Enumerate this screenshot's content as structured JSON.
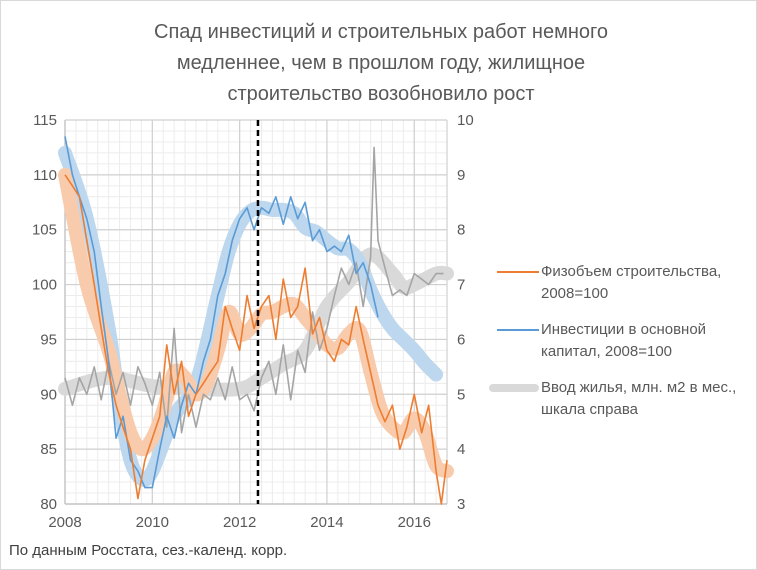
{
  "title": [
    "Спад инвестиций и строительных работ немного",
    "медленнее, чем в прошлом году, жилищное",
    "строительство возобновило рост"
  ],
  "footer": "По данным Росстата, сез.-календ. корр.",
  "legend": [
    {
      "label": "Физобъем строительства, 2008=100",
      "color": "#ED7D31"
    },
    {
      "label": "Инвестиции в основной капитал, 2008=100",
      "color": "#5B9BD5"
    },
    {
      "label": "Ввод жилья, млн. м2 в мес., шкала справа",
      "color": "#D9D9D9"
    }
  ],
  "chart_data": {
    "type": "line",
    "title": "Спад инвестиций и строительных работ немного медленнее, чем в прошлом году, жилищное строительство возобновило рост",
    "xlim": [
      2008,
      2016.75
    ],
    "x_ticks": [
      "2008",
      "2010",
      "2012",
      "2014",
      "2016"
    ],
    "x_tick_values": [
      2008,
      2010,
      2012,
      2014,
      2016
    ],
    "ylim_left": [
      80,
      115
    ],
    "y_ticks_left": [
      "80",
      "85",
      "90",
      "95",
      "100",
      "105",
      "110",
      "115"
    ],
    "ylim_right": [
      3,
      10
    ],
    "y_ticks_right": [
      "3",
      "4",
      "5",
      "6",
      "7",
      "8",
      "9",
      "10"
    ],
    "grid": true,
    "legend_position": "right",
    "marker_line_x": 2012.42,
    "series": [
      {
        "name": "Физобъем строительства, 2008=100",
        "axis": "left",
        "color": "#ED7D31",
        "smooth_color": "#F8CBAD",
        "raw": [
          [
            2008,
            110
          ],
          [
            2008.17,
            109
          ],
          [
            2008.33,
            108
          ],
          [
            2008.5,
            104
          ],
          [
            2008.67,
            100
          ],
          [
            2008.83,
            96
          ],
          [
            2009,
            92
          ],
          [
            2009.17,
            89
          ],
          [
            2009.33,
            87
          ],
          [
            2009.5,
            85
          ],
          [
            2009.67,
            80.5
          ],
          [
            2009.83,
            84
          ],
          [
            2010,
            86
          ],
          [
            2010.17,
            88
          ],
          [
            2010.33,
            94.5
          ],
          [
            2010.5,
            90
          ],
          [
            2010.67,
            93
          ],
          [
            2010.83,
            88
          ],
          [
            2011,
            90
          ],
          [
            2011.17,
            91
          ],
          [
            2011.33,
            92
          ],
          [
            2011.5,
            93
          ],
          [
            2011.67,
            98
          ],
          [
            2011.83,
            96
          ],
          [
            2012,
            94
          ],
          [
            2012.17,
            99
          ],
          [
            2012.33,
            96
          ],
          [
            2012.5,
            98
          ],
          [
            2012.67,
            99
          ],
          [
            2012.83,
            95
          ],
          [
            2013,
            100.5
          ],
          [
            2013.17,
            97
          ],
          [
            2013.33,
            98
          ],
          [
            2013.5,
            101.5
          ],
          [
            2013.67,
            95.5
          ],
          [
            2013.83,
            97
          ],
          [
            2014,
            94
          ],
          [
            2014.17,
            93
          ],
          [
            2014.33,
            95
          ],
          [
            2014.5,
            94.5
          ],
          [
            2014.67,
            98
          ],
          [
            2014.83,
            95
          ],
          [
            2015,
            92
          ],
          [
            2015.17,
            89
          ],
          [
            2015.33,
            87.5
          ],
          [
            2015.5,
            89
          ],
          [
            2015.67,
            85
          ],
          [
            2015.83,
            87
          ],
          [
            2016,
            90
          ],
          [
            2016.17,
            86.5
          ],
          [
            2016.33,
            89
          ],
          [
            2016.5,
            83
          ],
          [
            2016.62,
            80
          ],
          [
            2016.75,
            84
          ]
        ],
        "smooth": [
          [
            2008,
            110
          ],
          [
            2008.5,
            100
          ],
          [
            2009,
            94
          ],
          [
            2009.25,
            90
          ],
          [
            2009.5,
            86.5
          ],
          [
            2009.75,
            85
          ],
          [
            2010,
            86
          ],
          [
            2010.25,
            88.5
          ],
          [
            2010.5,
            92
          ],
          [
            2010.75,
            91.5
          ],
          [
            2011,
            90
          ],
          [
            2011.25,
            91
          ],
          [
            2011.5,
            94
          ],
          [
            2011.75,
            97.5
          ],
          [
            2012,
            95.5
          ],
          [
            2012.25,
            96
          ],
          [
            2012.5,
            97.3
          ],
          [
            2012.75,
            97.5
          ],
          [
            2013,
            98
          ],
          [
            2013.25,
            98.2
          ],
          [
            2013.5,
            97
          ],
          [
            2013.75,
            95.8
          ],
          [
            2014,
            94.5
          ],
          [
            2014.25,
            94.2
          ],
          [
            2014.5,
            95.5
          ],
          [
            2014.75,
            95.8
          ],
          [
            2015,
            92
          ],
          [
            2015.25,
            88.5
          ],
          [
            2015.5,
            87
          ],
          [
            2015.75,
            86.5
          ],
          [
            2016,
            87.8
          ],
          [
            2016.25,
            86.5
          ],
          [
            2016.5,
            83.5
          ],
          [
            2016.75,
            83
          ]
        ]
      },
      {
        "name": "Инвестиции в основной капитал, 2008=100",
        "axis": "left",
        "color": "#5B9BD5",
        "smooth_color": "#BDD7EE",
        "raw": [
          [
            2008,
            113.5
          ],
          [
            2008.17,
            110
          ],
          [
            2008.33,
            108
          ],
          [
            2008.5,
            106
          ],
          [
            2008.67,
            103
          ],
          [
            2008.83,
            98
          ],
          [
            2009,
            93
          ],
          [
            2009.17,
            86
          ],
          [
            2009.33,
            88
          ],
          [
            2009.5,
            84
          ],
          [
            2009.67,
            83
          ],
          [
            2009.83,
            81.5
          ],
          [
            2010,
            81.5
          ],
          [
            2010.17,
            85
          ],
          [
            2010.33,
            88
          ],
          [
            2010.5,
            86
          ],
          [
            2010.67,
            89
          ],
          [
            2010.83,
            91
          ],
          [
            2011,
            90
          ],
          [
            2011.17,
            93
          ],
          [
            2011.33,
            95
          ],
          [
            2011.5,
            99
          ],
          [
            2011.67,
            101
          ],
          [
            2011.83,
            104
          ],
          [
            2012,
            106
          ],
          [
            2012.17,
            107
          ],
          [
            2012.33,
            105
          ],
          [
            2012.5,
            107
          ],
          [
            2012.67,
            106.5
          ],
          [
            2012.83,
            108
          ],
          [
            2013,
            105.5
          ],
          [
            2013.17,
            108
          ],
          [
            2013.33,
            106
          ],
          [
            2013.5,
            107.5
          ],
          [
            2013.67,
            104
          ],
          [
            2013.83,
            105
          ],
          [
            2014,
            103
          ],
          [
            2014.17,
            103.5
          ],
          [
            2014.33,
            103
          ],
          [
            2014.5,
            104.5
          ],
          [
            2014.67,
            101
          ],
          [
            2014.83,
            102
          ],
          [
            2015,
            100
          ],
          [
            2015.17,
            97
          ]
        ],
        "smooth": [
          [
            2008,
            112
          ],
          [
            2008.5,
            106
          ],
          [
            2009,
            96
          ],
          [
            2009.25,
            89
          ],
          [
            2009.5,
            84
          ],
          [
            2009.75,
            82.3
          ],
          [
            2010,
            83
          ],
          [
            2010.5,
            88
          ],
          [
            2011,
            91
          ],
          [
            2011.5,
            99
          ],
          [
            2011.75,
            103
          ],
          [
            2012,
            105.5
          ],
          [
            2012.25,
            106.7
          ],
          [
            2012.5,
            107
          ],
          [
            2012.75,
            106.8
          ],
          [
            2013,
            106.8
          ],
          [
            2013.25,
            106.5
          ],
          [
            2013.5,
            105.2
          ],
          [
            2013.75,
            104.8
          ],
          [
            2014,
            104
          ],
          [
            2014.25,
            103.3
          ],
          [
            2014.5,
            103.2
          ],
          [
            2014.75,
            102
          ],
          [
            2015,
            99.5
          ],
          [
            2015.25,
            97.5
          ],
          [
            2015.5,
            96
          ],
          [
            2015.75,
            95
          ],
          [
            2016,
            94
          ],
          [
            2016.25,
            92.8
          ],
          [
            2016.5,
            91.8
          ]
        ]
      },
      {
        "name": "Ввод жилья, млн. м2 в мес., шкала справа",
        "axis": "right",
        "color": "#A5A5A5",
        "smooth_color": "#D9D9D9",
        "raw": [
          [
            2008,
            5.3
          ],
          [
            2008.17,
            4.8
          ],
          [
            2008.33,
            5.3
          ],
          [
            2008.5,
            5.0
          ],
          [
            2008.67,
            5.5
          ],
          [
            2008.83,
            4.9
          ],
          [
            2009,
            5.6
          ],
          [
            2009.17,
            5.0
          ],
          [
            2009.33,
            5.4
          ],
          [
            2009.5,
            4.8
          ],
          [
            2009.67,
            5.5
          ],
          [
            2009.83,
            5.2
          ],
          [
            2010,
            4.8
          ],
          [
            2010.17,
            5.4
          ],
          [
            2010.33,
            4.4
          ],
          [
            2010.5,
            6.2
          ],
          [
            2010.67,
            4.3
          ],
          [
            2010.83,
            5.0
          ],
          [
            2011,
            4.4
          ],
          [
            2011.17,
            5.0
          ],
          [
            2011.33,
            4.9
          ],
          [
            2011.5,
            5.3
          ],
          [
            2011.67,
            4.9
          ],
          [
            2011.83,
            5.5
          ],
          [
            2012,
            4.9
          ],
          [
            2012.17,
            5.0
          ],
          [
            2012.33,
            4.7
          ],
          [
            2012.5,
            5.3
          ],
          [
            2012.67,
            5.6
          ],
          [
            2012.83,
            5.0
          ],
          [
            2013,
            5.9
          ],
          [
            2013.17,
            4.9
          ],
          [
            2013.33,
            5.8
          ],
          [
            2013.5,
            5.4
          ],
          [
            2013.67,
            6.5
          ],
          [
            2013.83,
            5.8
          ],
          [
            2014,
            6.2
          ],
          [
            2014.17,
            6.8
          ],
          [
            2014.33,
            7.3
          ],
          [
            2014.5,
            7.0
          ],
          [
            2014.67,
            7.4
          ],
          [
            2014.83,
            6.6
          ],
          [
            2015,
            7.5
          ],
          [
            2015.08,
            9.5
          ],
          [
            2015.17,
            7.8
          ],
          [
            2015.33,
            7.3
          ],
          [
            2015.5,
            6.8
          ],
          [
            2015.67,
            6.9
          ],
          [
            2015.83,
            6.8
          ],
          [
            2016,
            7.2
          ],
          [
            2016.17,
            7.1
          ],
          [
            2016.33,
            7.0
          ],
          [
            2016.5,
            7.2
          ],
          [
            2016.67,
            7.2
          ]
        ],
        "smooth": [
          [
            2008,
            5.1
          ],
          [
            2009,
            5.3
          ],
          [
            2010,
            5.15
          ],
          [
            2011,
            5.1
          ],
          [
            2012,
            5.1
          ],
          [
            2012.5,
            5.3
          ],
          [
            2013,
            5.55
          ],
          [
            2013.5,
            5.8
          ],
          [
            2014,
            6.6
          ],
          [
            2014.5,
            7.05
          ],
          [
            2015,
            7.55
          ],
          [
            2015.5,
            7.2
          ],
          [
            2015.75,
            6.95
          ],
          [
            2016,
            7.0
          ],
          [
            2016.5,
            7.2
          ],
          [
            2016.75,
            7.2
          ]
        ]
      }
    ]
  }
}
